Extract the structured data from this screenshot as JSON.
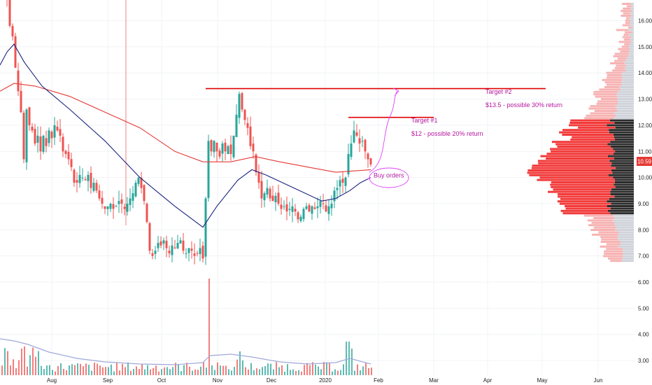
{
  "chart_data": {
    "type": "candlestick",
    "price_axis": {
      "ticks": [
        "16.00",
        "15.00",
        "14.00",
        "13.00",
        "12.00",
        "11.00",
        "10.00",
        "9.00",
        "8.00",
        "7.00",
        "6.00",
        "5.00",
        "4.00",
        "3.00"
      ],
      "range": [
        2.6,
        17.2
      ]
    },
    "time_axis": {
      "ticks": [
        "Aug",
        "Sep",
        "Oct",
        "Nov",
        "Dec",
        "2020",
        "Feb",
        "Mar",
        "Apr",
        "May",
        "Jun"
      ]
    },
    "last_price": "10.59",
    "price_series": [
      {
        "x": 6,
        "y": 17.0
      },
      {
        "x": 10,
        "y": 16.9
      },
      {
        "x": 14,
        "y": 15.8
      },
      {
        "x": 18,
        "y": 15.4
      },
      {
        "x": 22,
        "y": 14.2
      },
      {
        "x": 26,
        "y": 13.3
      },
      {
        "x": 30,
        "y": 12.5
      },
      {
        "x": 34,
        "y": 10.7
      },
      {
        "x": 38,
        "y": 12.6
      },
      {
        "x": 42,
        "y": 12.0
      },
      {
        "x": 46,
        "y": 11.8
      },
      {
        "x": 50,
        "y": 11.3
      },
      {
        "x": 54,
        "y": 11.6
      },
      {
        "x": 58,
        "y": 11.0
      },
      {
        "x": 62,
        "y": 11.6
      },
      {
        "x": 66,
        "y": 11.2
      },
      {
        "x": 70,
        "y": 11.8
      },
      {
        "x": 74,
        "y": 11.5
      },
      {
        "x": 78,
        "y": 12.0
      },
      {
        "x": 82,
        "y": 11.8
      },
      {
        "x": 86,
        "y": 11.6
      },
      {
        "x": 90,
        "y": 11.0
      },
      {
        "x": 94,
        "y": 10.9
      },
      {
        "x": 98,
        "y": 10.7
      },
      {
        "x": 102,
        "y": 10.4
      },
      {
        "x": 106,
        "y": 9.8
      },
      {
        "x": 110,
        "y": 9.8
      },
      {
        "x": 114,
        "y": 10.1
      },
      {
        "x": 118,
        "y": 10.0
      },
      {
        "x": 122,
        "y": 9.9
      },
      {
        "x": 126,
        "y": 10.1
      },
      {
        "x": 130,
        "y": 9.6
      },
      {
        "x": 134,
        "y": 9.8
      },
      {
        "x": 138,
        "y": 9.5
      },
      {
        "x": 142,
        "y": 9.2
      },
      {
        "x": 146,
        "y": 9.0
      },
      {
        "x": 150,
        "y": 8.8
      },
      {
        "x": 154,
        "y": 8.9
      },
      {
        "x": 158,
        "y": 9.0
      },
      {
        "x": 162,
        "y": 8.8
      },
      {
        "x": 166,
        "y": 8.9
      },
      {
        "x": 170,
        "y": 9.1
      },
      {
        "x": 174,
        "y": 9.0
      },
      {
        "x": 178,
        "y": 8.8
      },
      {
        "x": 182,
        "y": 9.0
      },
      {
        "x": 186,
        "y": 9.2
      },
      {
        "x": 190,
        "y": 9.4
      },
      {
        "x": 194,
        "y": 9.8
      },
      {
        "x": 198,
        "y": 10.0
      },
      {
        "x": 202,
        "y": 9.6
      },
      {
        "x": 206,
        "y": 9.1
      },
      {
        "x": 210,
        "y": 8.3
      },
      {
        "x": 214,
        "y": 7.2
      },
      {
        "x": 218,
        "y": 7.0
      },
      {
        "x": 222,
        "y": 7.2
      },
      {
        "x": 226,
        "y": 7.5
      },
      {
        "x": 230,
        "y": 7.4
      },
      {
        "x": 234,
        "y": 7.6
      },
      {
        "x": 238,
        "y": 7.3
      },
      {
        "x": 242,
        "y": 7.1
      },
      {
        "x": 246,
        "y": 7.4
      },
      {
        "x": 250,
        "y": 7.3
      },
      {
        "x": 254,
        "y": 7.5
      },
      {
        "x": 258,
        "y": 7.6
      },
      {
        "x": 262,
        "y": 7.2
      },
      {
        "x": 266,
        "y": 7.1
      },
      {
        "x": 270,
        "y": 7.3
      },
      {
        "x": 274,
        "y": 7.2
      },
      {
        "x": 278,
        "y": 7.0
      },
      {
        "x": 282,
        "y": 7.1
      },
      {
        "x": 286,
        "y": 7.3
      },
      {
        "x": 290,
        "y": 6.9
      },
      {
        "x": 294,
        "y": 9.2
      },
      {
        "x": 298,
        "y": 11.4
      },
      {
        "x": 302,
        "y": 11.0
      },
      {
        "x": 306,
        "y": 11.4
      },
      {
        "x": 310,
        "y": 11.0
      },
      {
        "x": 314,
        "y": 10.8
      },
      {
        "x": 318,
        "y": 11.3
      },
      {
        "x": 322,
        "y": 11.0
      },
      {
        "x": 326,
        "y": 11.2
      },
      {
        "x": 330,
        "y": 10.9
      },
      {
        "x": 334,
        "y": 11.6
      },
      {
        "x": 338,
        "y": 12.4
      },
      {
        "x": 342,
        "y": 13.2
      },
      {
        "x": 346,
        "y": 12.6
      },
      {
        "x": 350,
        "y": 12.2
      },
      {
        "x": 354,
        "y": 11.9
      },
      {
        "x": 358,
        "y": 11.2
      },
      {
        "x": 362,
        "y": 11.0
      },
      {
        "x": 366,
        "y": 10.2
      },
      {
        "x": 370,
        "y": 9.8
      },
      {
        "x": 374,
        "y": 9.2
      },
      {
        "x": 378,
        "y": 9.4
      },
      {
        "x": 382,
        "y": 9.6
      },
      {
        "x": 386,
        "y": 9.2
      },
      {
        "x": 390,
        "y": 9.1
      },
      {
        "x": 394,
        "y": 9.3
      },
      {
        "x": 398,
        "y": 9.0
      },
      {
        "x": 402,
        "y": 8.8
      },
      {
        "x": 406,
        "y": 8.9
      },
      {
        "x": 410,
        "y": 8.7
      },
      {
        "x": 414,
        "y": 8.8
      },
      {
        "x": 418,
        "y": 8.9
      },
      {
        "x": 422,
        "y": 8.7
      },
      {
        "x": 426,
        "y": 8.4
      },
      {
        "x": 430,
        "y": 8.5
      },
      {
        "x": 434,
        "y": 8.8
      },
      {
        "x": 438,
        "y": 8.9
      },
      {
        "x": 442,
        "y": 8.7
      },
      {
        "x": 446,
        "y": 8.9
      },
      {
        "x": 450,
        "y": 8.8
      },
      {
        "x": 454,
        "y": 8.9
      },
      {
        "x": 458,
        "y": 9.1
      },
      {
        "x": 462,
        "y": 9.0
      },
      {
        "x": 466,
        "y": 8.7
      },
      {
        "x": 470,
        "y": 8.9
      },
      {
        "x": 474,
        "y": 9.0
      },
      {
        "x": 478,
        "y": 9.5
      },
      {
        "x": 482,
        "y": 9.6
      },
      {
        "x": 486,
        "y": 9.9
      },
      {
        "x": 490,
        "y": 9.8
      },
      {
        "x": 494,
        "y": 10.0
      },
      {
        "x": 498,
        "y": 10.9
      },
      {
        "x": 502,
        "y": 11.3
      },
      {
        "x": 506,
        "y": 11.8
      },
      {
        "x": 510,
        "y": 11.6
      },
      {
        "x": 514,
        "y": 11.3
      },
      {
        "x": 518,
        "y": 11.4
      },
      {
        "x": 522,
        "y": 11.0
      },
      {
        "x": 526,
        "y": 10.7
      },
      {
        "x": 530,
        "y": 10.5
      }
    ],
    "ma_red": [
      {
        "x": 0,
        "y": 13.3
      },
      {
        "x": 20,
        "y": 13.6
      },
      {
        "x": 50,
        "y": 13.5
      },
      {
        "x": 100,
        "y": 13.1
      },
      {
        "x": 150,
        "y": 12.5
      },
      {
        "x": 200,
        "y": 11.9
      },
      {
        "x": 250,
        "y": 11.0
      },
      {
        "x": 290,
        "y": 10.6
      },
      {
        "x": 330,
        "y": 10.6
      },
      {
        "x": 365,
        "y": 10.8
      },
      {
        "x": 400,
        "y": 10.6
      },
      {
        "x": 440,
        "y": 10.4
      },
      {
        "x": 480,
        "y": 10.2
      },
      {
        "x": 530,
        "y": 10.3
      }
    ],
    "ma_blue": [
      {
        "x": 0,
        "y": 14.3
      },
      {
        "x": 10,
        "y": 14.8
      },
      {
        "x": 20,
        "y": 15.1
      },
      {
        "x": 35,
        "y": 14.4
      },
      {
        "x": 60,
        "y": 13.5
      },
      {
        "x": 100,
        "y": 12.6
      },
      {
        "x": 150,
        "y": 11.4
      },
      {
        "x": 200,
        "y": 10.0
      },
      {
        "x": 250,
        "y": 8.9
      },
      {
        "x": 290,
        "y": 8.1
      },
      {
        "x": 310,
        "y": 8.9
      },
      {
        "x": 340,
        "y": 9.9
      },
      {
        "x": 360,
        "y": 10.3
      },
      {
        "x": 380,
        "y": 10.1
      },
      {
        "x": 420,
        "y": 9.6
      },
      {
        "x": 460,
        "y": 9.1
      },
      {
        "x": 480,
        "y": 9.2
      },
      {
        "x": 500,
        "y": 9.5
      },
      {
        "x": 515,
        "y": 9.8
      },
      {
        "x": 530,
        "y": 10.0
      }
    ],
    "levels": [
      {
        "from": 294,
        "to": 780,
        "y": 13.4
      },
      {
        "from": 498,
        "to": 620,
        "y": 12.3
      }
    ],
    "annotations": [
      {
        "label": "Target #2",
        "x": 694,
        "y": 13.2
      },
      {
        "label": "$13.5 - possible 30% return",
        "x": 694,
        "y": 12.7
      },
      {
        "label": "Target #1",
        "x": 588,
        "y": 12.1
      },
      {
        "label": "$12 - possible 20% return",
        "x": 588,
        "y": 11.6
      },
      {
        "label": "Buy orders",
        "x": 534,
        "y": 10.0
      }
    ],
    "volume": {
      "ma": "grey"
    }
  }
}
